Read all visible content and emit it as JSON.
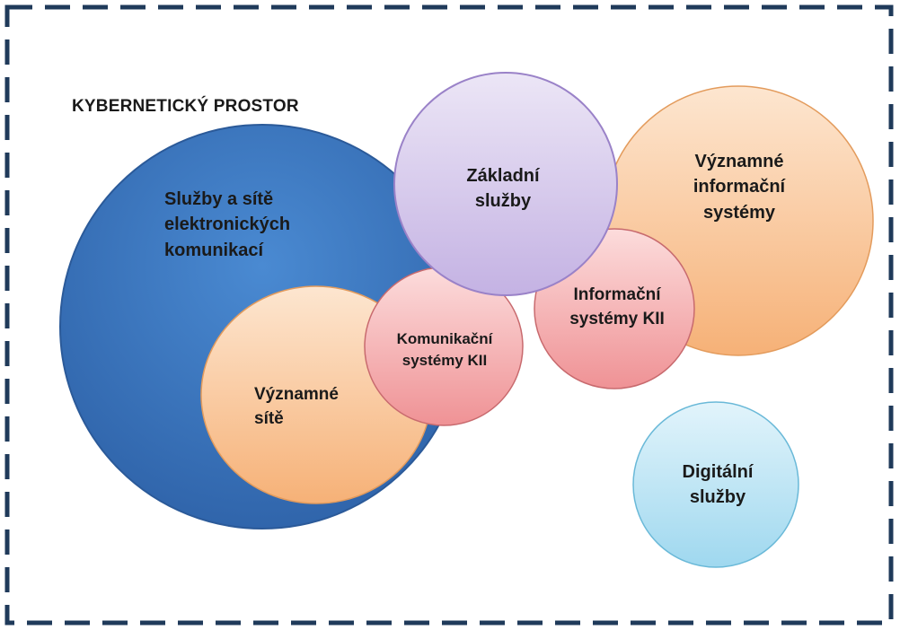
{
  "title": "KYBERNETICKÝ PROSTOR",
  "circles": {
    "sluzby_site": [
      "Služby a sítě",
      "elektronických",
      "komunikací"
    ],
    "zakladni": [
      "Základní",
      "služby"
    ],
    "vyznamne_is": [
      "Významné",
      "informační",
      "systémy"
    ],
    "informacni_kii": [
      "Informační",
      "systémy KII"
    ],
    "komunikacni_kii": [
      "Komunikační",
      "systémy KII"
    ],
    "vyznamne_site": [
      "Významné",
      "sítě"
    ],
    "digitalni": [
      "Digitální",
      "služby"
    ]
  },
  "colors": {
    "frame": "#1f3a5a",
    "blue": "#3f7cc5",
    "purple": "#cdbfe8",
    "orange": "#f7c08d",
    "pink": "#f3a3a6",
    "cyan": "#b6e2f3"
  }
}
